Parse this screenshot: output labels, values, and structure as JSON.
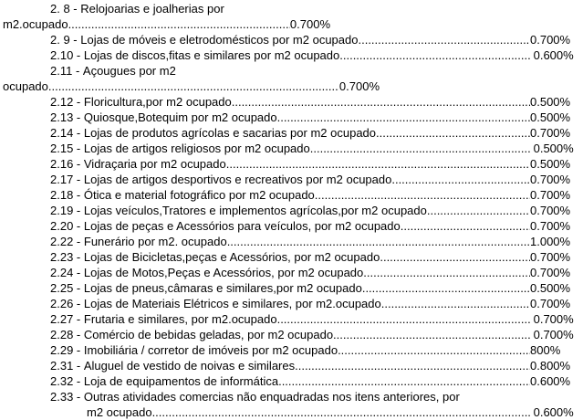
{
  "items": [
    {
      "code": "2. 8",
      "label": "Relojoarias e joalherias por",
      "cont": "m2.ocupado",
      "value": "0.700%",
      "wrap": "short"
    },
    {
      "code": "2. 9",
      "label": "Lojas de móveis e eletrodomésticos por m2 ocupado",
      "value": "0.700%"
    },
    {
      "code": "2.10",
      "label": "Lojas de discos,fitas e similares por m2 ocupado",
      "value": " 0.600%"
    },
    {
      "code": "2.11",
      "label": "Açougues por m2",
      "cont": "ocupado",
      "value": "0.700%",
      "wrap": "mid"
    },
    {
      "code": "2.12",
      "label": "Floricultura,por m2 ocupado",
      "value": "0.500%"
    },
    {
      "code": "2.13",
      "label": "Quiosque,Botequim por m2 ocupado",
      "value": "0.500%"
    },
    {
      "code": "2.14",
      "label": "Lojas de produtos agrícolas e sacarias por m2 ocupado",
      "value": "0.700%"
    },
    {
      "code": "2.15",
      "label": "Lojas de artigos religiosos por m2 ocupado",
      "value": " 0.500%"
    },
    {
      "code": "2.16",
      "label": "Vidraçaria por m2 ocupado",
      "value": "0.500%"
    },
    {
      "code": "2.17",
      "label": "Lojas de artigos desportivos e recreativos por m2 ocupado",
      "value": "0.700%"
    },
    {
      "code": "2.18",
      "label": "Ótica e material fotográfico por m2 ocupado",
      "value": "0.700%"
    },
    {
      "code": "2.19",
      "label": "Lojas veículos,Tratores e implementos agrícolas,por m2 ocupado",
      "value": "0.700%"
    },
    {
      "code": "2.20",
      "label": "Lojas de peças e Acessórios para veículos, por m2 ocupado",
      "value": "0.700%"
    },
    {
      "code": "2.22",
      "label": "Funerário por m2. ocupado",
      "value": "1.000%"
    },
    {
      "code": "2.23",
      "label": "Lojas de Bicicletas,peças e Acessórios, por m2 ocupado",
      "value": "0.700%"
    },
    {
      "code": "2.24",
      "label": "Lojas de Motos,Peças e Acessórios, por m2 ocupado",
      "value": "0.700%"
    },
    {
      "code": "2.25",
      "label": "Lojas de pneus,câmaras e similares,por m2 ocupado",
      "value": "0.500%"
    },
    {
      "code": "2.26",
      "label": "Lojas de Materiais Elétricos e similares, por m2.ocupado",
      "value": "0.700%"
    },
    {
      "code": "2.27",
      "label": "Frutaria e similares, por m2.ocupado",
      "value": " 0.700%"
    },
    {
      "code": "2.28",
      "label": "Comércio de bebidas geladas, por m2 ocupado",
      "value": " 0.700%"
    },
    {
      "code": "2.29",
      "label": "Imobiliária / corretor de imóveis por m2 ocupado",
      "value": "800%"
    },
    {
      "code": "2.31",
      "label": "Aluguel de vestido de noivas e similares",
      "value": "0.800%"
    },
    {
      "code": "2.32",
      "label": "Loja de equipamentos de informática",
      "value": "0.600%"
    },
    {
      "code": "2.33",
      "label": "Outras atividades comercias não enquadradas nos itens anteriores, por",
      "cont": "m2 ocupado",
      "value": " 0.600%",
      "wrap": "indent"
    }
  ]
}
